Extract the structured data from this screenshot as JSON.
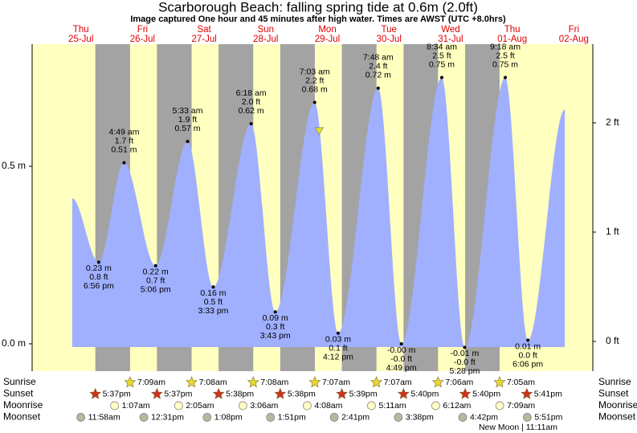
{
  "chart_data": {
    "type": "area",
    "title": "Scarborough Beach: falling  spring tide at 0.6m (2.0ft)",
    "subtitle": "Image captured One hour and 45 minutes after high water. Times are AWST (UTC +8.0hrs)",
    "days": {
      "names": [
        "Thu",
        "Fri",
        "Sat",
        "Sun",
        "Mon",
        "Tue",
        "Wed",
        "Thu",
        "Fri"
      ],
      "dates": [
        "25-Jul",
        "26-Jul",
        "27-Jul",
        "28-Jul",
        "29-Jul",
        "30-Jul",
        "31-Jul",
        "01-Aug",
        "02-Aug"
      ]
    },
    "xlim": [
      -7,
      211.4
    ],
    "ylim": [
      -0.077,
      0.844
    ],
    "yticks": [
      {
        "value": 0,
        "label": "0.0 m"
      },
      {
        "value": 0.5,
        "label": "0.5 m"
      }
    ],
    "y2lim": [
      -0.272,
      2.72
    ],
    "y2ticks": [
      {
        "value": 0,
        "label": "0 ft"
      },
      {
        "value": 1,
        "label": "1 ft"
      },
      {
        "value": 2,
        "label": "2 ft"
      }
    ],
    "day_color": "#ffffc0",
    "night_color": "#a3a3a3",
    "series": [
      {
        "color": "#a0b0ff",
        "x": [
          8.6,
          18.93,
          28.82,
          41.1,
          53.55,
          63.55,
          78.3,
          87.72,
          103.05,
          112.2,
          127.8,
          136.82,
          152.57,
          161.47,
          177.3,
          186.1,
          200.5
        ],
        "values": [
          0.41,
          0.23,
          0.51,
          0.22,
          0.57,
          0.16,
          0.62,
          0.09,
          0.68,
          0.03,
          0.72,
          0,
          0.75,
          -0.01,
          0.75,
          0.01,
          0.66
        ],
        "value_labels": [
          null,
          "0.23 m",
          "0.51 m",
          "0.22 m",
          "0.57 m",
          "0.16 m",
          "0.62 m",
          "0.09 m",
          "0.68 m",
          "0.03 m",
          "0.72 m",
          "-0.00 m",
          "0.75 m",
          "-0.01 m",
          "0.75 m",
          "0.01 m",
          null
        ],
        "ft_labels": [
          null,
          "0.8 ft",
          "1.7 ft",
          "0.7 ft",
          "1.9 ft",
          "0.5 ft",
          "2.0 ft",
          "0.3 ft",
          "2.2 ft",
          "0.1 ft",
          "2.4 ft",
          "-0.0 ft",
          "2.5 ft",
          "-0.0 ft",
          "2.5 ft",
          "0.0 ft",
          null
        ],
        "time_labels": [
          null,
          "6:56 pm",
          "4:49 am",
          "5:06 pm",
          "5:33 am",
          "3:33 pm",
          "6:18 am",
          "3:43 pm",
          "7:03 am",
          "4:12 pm",
          "7:48 am",
          "4:49 pm",
          "8:34 am",
          "5:28 pm",
          "9:18 am",
          "6:06 pm",
          null
        ]
      }
    ],
    "current_tide": {
      "x": 104.8,
      "value": 0.6,
      "color": "#e8e020"
    },
    "almanac": [
      {
        "name": "Sunrise",
        "marker": "star",
        "color": "#e8d830",
        "x": [
          31.15,
          55.13,
          79.13,
          103.12,
          127.12,
          151.1,
          175.08
        ],
        "labels": [
          "7:09am",
          "7:08am",
          "7:08am",
          "7:07am",
          "7:07am",
          "7:06am",
          "7:05am"
        ]
      },
      {
        "name": "Sunset",
        "marker": "star",
        "color": "#d03020",
        "x": [
          17.62,
          41.62,
          65.63,
          89.63,
          113.65,
          137.67,
          161.67,
          185.68
        ],
        "labels": [
          "5:37pm",
          "5:37pm",
          "5:38pm",
          "5:38pm",
          "5:39pm",
          "5:40pm",
          "5:40pm",
          "5:41pm"
        ]
      },
      {
        "name": "Moonrise",
        "marker": "circle",
        "color": "#ffffc8",
        "x": [
          25.12,
          50.08,
          75.1,
          100.13,
          125.18,
          150.2,
          175.15
        ],
        "labels": [
          "1:07am",
          "2:05am",
          "3:06am",
          "4:08am",
          "5:11am",
          "6:12am",
          "7:09am"
        ]
      },
      {
        "name": "Moonset",
        "marker": "circle",
        "color": "#b8b8a0",
        "x": [
          11.97,
          36.52,
          61.13,
          85.85,
          110.68,
          135.63,
          160.7,
          185.85
        ],
        "labels": [
          "11:58am",
          "12:31pm",
          "1:08pm",
          "1:51pm",
          "2:41pm",
          "3:38pm",
          "4:42pm",
          "5:51pm"
        ]
      }
    ],
    "moon_phase": "New Moon | 11:11am"
  }
}
